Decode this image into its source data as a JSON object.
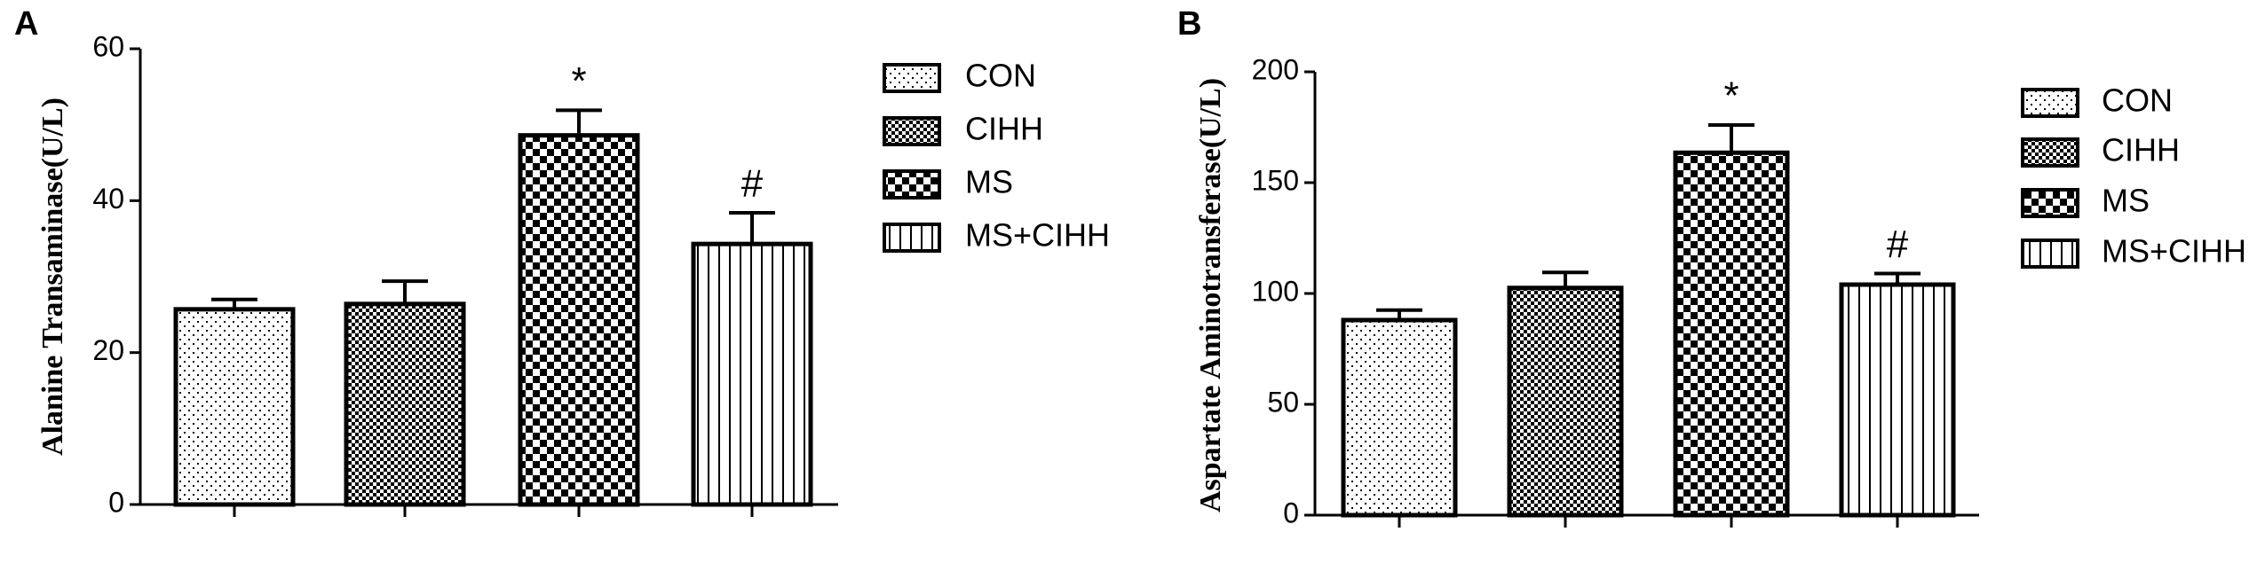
{
  "chart_data": [
    {
      "type": "bar",
      "panel": "A",
      "ylabel": "Alanine Transaminase(U/L)",
      "categories": [
        "CON",
        "CIHH",
        "MS",
        "MS+CIHH"
      ],
      "values": [
        25.7,
        26.4,
        48.6,
        34.3
      ],
      "errors": [
        1.3,
        3.0,
        3.3,
        4.1
      ],
      "annotations": [
        null,
        null,
        "*",
        "#"
      ],
      "patterns": [
        "dots",
        "fine-checker",
        "checker",
        "stripes"
      ],
      "ylim": [
        0,
        60
      ],
      "yticks": [
        0,
        20,
        40,
        60
      ],
      "legend": "right"
    },
    {
      "type": "bar",
      "panel": "B",
      "ylabel": "Aspartate Aminotransferase(U/L)",
      "categories": [
        "CON",
        "CIHH",
        "MS",
        "MS+CIHH"
      ],
      "values": [
        88,
        102.5,
        163.5,
        104
      ],
      "errors": [
        4.5,
        7,
        12.5,
        5
      ],
      "annotations": [
        null,
        null,
        "*",
        "#"
      ],
      "patterns": [
        "dots",
        "fine-checker",
        "checker",
        "stripes"
      ],
      "ylim": [
        0,
        200
      ],
      "yticks": [
        0,
        50,
        100,
        150,
        200
      ],
      "legend": "right"
    }
  ]
}
